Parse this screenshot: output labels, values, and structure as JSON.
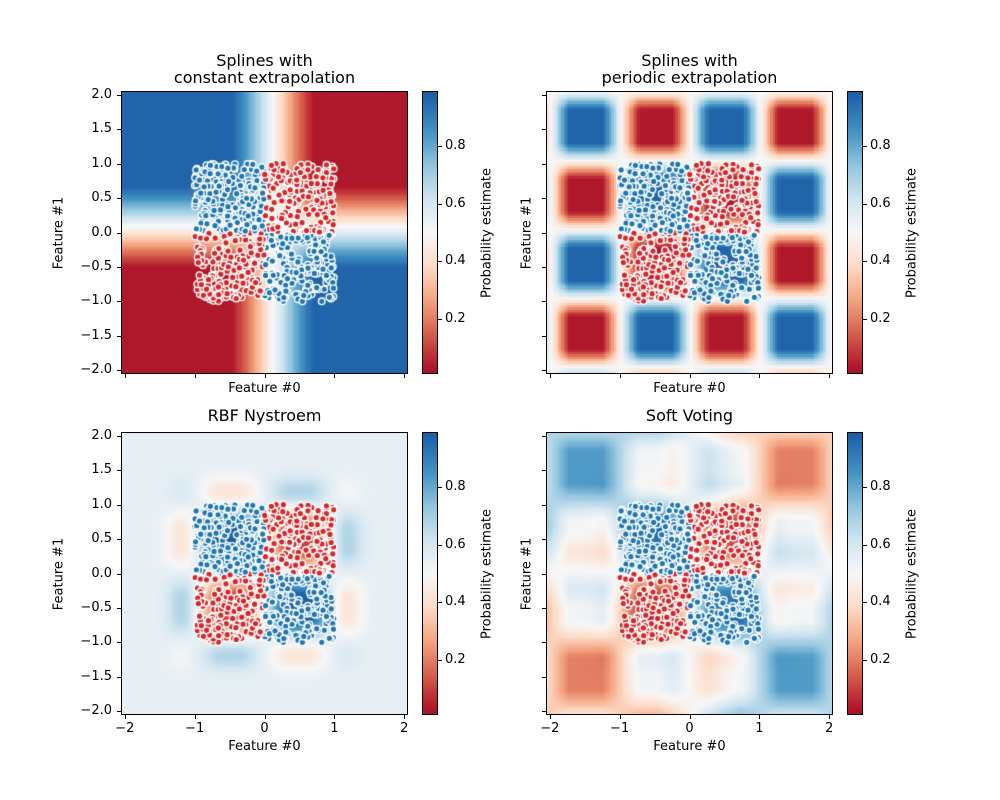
{
  "figure": {
    "background": "#ffffff"
  },
  "subplots": [
    {
      "id": "splines-constant",
      "title_lines": [
        "Splines with",
        "constant extrapolation"
      ],
      "xlabel": "Feature #0",
      "ylabel": "Feature #1",
      "field": "constant",
      "show_xticklabels": false,
      "show_yticklabels": true
    },
    {
      "id": "splines-periodic",
      "title_lines": [
        "Splines with",
        "periodic extrapolation"
      ],
      "xlabel": "Feature #0",
      "ylabel": "Feature #1",
      "field": "periodic",
      "show_xticklabels": false,
      "show_yticklabels": false
    },
    {
      "id": "rbf-nystroem",
      "title_lines": [
        "RBF Nystroem"
      ],
      "xlabel": "Feature #0",
      "ylabel": "Feature #1",
      "field": "rbf",
      "show_xticklabels": true,
      "show_yticklabels": true
    },
    {
      "id": "soft-voting",
      "title_lines": [
        "Soft Voting"
      ],
      "xlabel": "Feature #0",
      "ylabel": "Feature #1",
      "field": "voting",
      "show_xticklabels": true,
      "show_yticklabels": false
    }
  ],
  "axes": {
    "xtick_values": [
      -2,
      -1,
      0,
      1,
      2
    ],
    "xtick_labels": [
      "−2",
      "−1",
      "0",
      "1",
      "2"
    ],
    "ytick_values": [
      2.0,
      1.5,
      1.0,
      0.5,
      0.0,
      -0.5,
      -1.0,
      -1.5,
      -2.0
    ],
    "ytick_labels": [
      "2.0",
      "1.5",
      "1.0",
      "0.5",
      "0.0",
      "−0.5",
      "−1.0",
      "−1.5",
      "−2.0"
    ],
    "xlim": [
      -2.04,
      2.04
    ],
    "ylim": [
      -2.04,
      2.04
    ]
  },
  "colorbar": {
    "label": "Probability estimate",
    "tick_values": [
      0.2,
      0.4,
      0.6,
      0.8
    ],
    "tick_labels": [
      "0.2",
      "0.4",
      "0.6",
      "0.8"
    ],
    "vmin": 0.015,
    "vmax": 0.985
  },
  "colors": {
    "scatter_class_high": "#1f77b4",
    "scatter_class_low": "#d62728",
    "scatter_edge": "#ffffff",
    "cmap_low": "#a51429",
    "cmap_mid": "#f7f7f7",
    "cmap_high": "#1f64a9",
    "spine": "#000000"
  },
  "chart_data": {
    "type": "heatmap",
    "figure_kind": "2x2 grid of classifier probability surfaces (XOR problem) with scatter overlay",
    "x_range": [
      -2,
      2
    ],
    "y_range": [
      -2,
      2
    ],
    "xlabel": "Feature #0",
    "ylabel": "Feature #1",
    "colormap": "RdBu (red = low probability, blue = high probability)",
    "colorbar": {
      "label": "Probability estimate",
      "ticks": [
        0.2,
        0.4,
        0.6,
        0.8
      ]
    },
    "subplots": [
      {
        "title": "Splines with constant extrapolation",
        "pattern": "2x2 XOR checkerboard; white transition bands near x≈0.1 and y≈0.1; colors saturate and stay constant beyond |x|>1, |y|>1",
        "quadrant_probabilities": {
          "x<0,y>0": 0.97,
          "x>0,y>0": 0.03,
          "x<0,y<0": 0.03,
          "x>0,y<0": 0.97
        }
      },
      {
        "title": "Splines with periodic extrapolation",
        "pattern": "4x4 periodic checkerboard, period 2 in x and y; rounded saturated cells separated by white lines at integer coordinates",
        "quadrant_probabilities": {
          "x<0,y>0": 0.97,
          "x>0,y>0": 0.03,
          "x<0,y<0": 0.03,
          "x>0,y<0": 0.97
        }
      },
      {
        "title": "RBF Nystroem",
        "pattern": "four saturated blobs centered near (±0.55, ±0.55) matching XOR classes, fading to pale blue-white (p≈0.55) beyond the data square",
        "quadrant_probabilities": {
          "x<0,y>0": 0.98,
          "x>0,y>0": 0.1,
          "x<0,y<0": 0.1,
          "x>0,y<0": 0.98
        }
      },
      {
        "title": "Soft Voting",
        "pattern": "soft average of the three models: strong XOR checkerboard inside data square, pale blue/red diagonal tiling outside",
        "quadrant_probabilities": {
          "x<0,y>0": 0.96,
          "x>0,y>0": 0.06,
          "x<0,y<0": 0.06,
          "x>0,y<0": 0.96
        }
      }
    ],
    "scatter": {
      "n_points": 800,
      "seed": 42,
      "distribution": "uniform on [-1,1] x [-1,1], identical in all four subplots",
      "class_rule": "blue (high probability class) where x*y<0; red (low probability class) where x*y>0",
      "marker": {
        "radius_px": 3.3,
        "fill_blue": "#1f77b4",
        "fill_red": "#d62728",
        "edge": "white"
      }
    }
  }
}
